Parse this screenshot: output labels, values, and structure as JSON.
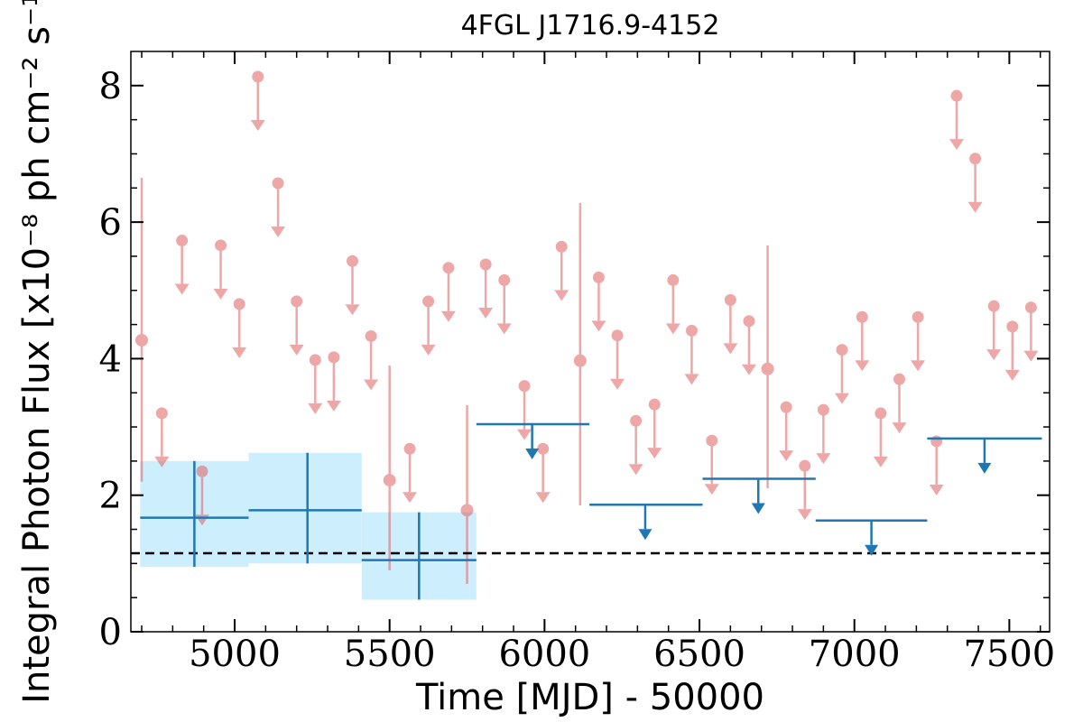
{
  "chart_data": {
    "type": "scatter",
    "title": "4FGL J1716.9-4152",
    "xlabel": "Time [MJD] - 50000",
    "ylabel": "Integral Photon Flux [x10⁻⁸ ph cm⁻² s⁻¹]",
    "xlim": [
      4665,
      7630
    ],
    "ylim": [
      0,
      8.5
    ],
    "xticks": [
      5000,
      5500,
      6000,
      6500,
      7000,
      7500
    ],
    "xtick_labels": [
      "5000",
      "5500",
      "6000",
      "6500",
      "7000",
      "7500"
    ],
    "yticks": [
      0,
      2,
      4,
      6,
      8
    ],
    "ytick_labels": [
      "0",
      "2",
      "4",
      "6",
      "8"
    ],
    "grid": false,
    "legend": "none",
    "reference_line": {
      "y": 1.15,
      "style": "dashed",
      "color": "#000000"
    },
    "series": [
      {
        "style": "short-bin detections",
        "color": "#e06060",
        "points": [
          {
            "x": 4700,
            "y": 4.27,
            "ylow": 2.2,
            "yhigh": 6.65
          },
          {
            "x": 5500,
            "y": 2.22,
            "ylow": 0.9,
            "yhigh": 3.9
          },
          {
            "x": 5750,
            "y": 1.78,
            "ylow": 0.7,
            "yhigh": 3.32
          },
          {
            "x": 6115,
            "y": 3.97,
            "ylow": 1.85,
            "yhigh": 6.28
          },
          {
            "x": 6720,
            "y": 3.85,
            "ylow": 2.1,
            "yhigh": 5.66
          }
        ]
      },
      {
        "style": "short-bin upper limits",
        "color": "#e06060",
        "points": [
          {
            "x": 4765,
            "y": 3.2
          },
          {
            "x": 4830,
            "y": 5.73
          },
          {
            "x": 4895,
            "y": 2.35
          },
          {
            "x": 4955,
            "y": 5.66
          },
          {
            "x": 5015,
            "y": 4.8
          },
          {
            "x": 5075,
            "y": 8.13
          },
          {
            "x": 5140,
            "y": 6.57
          },
          {
            "x": 5200,
            "y": 4.84
          },
          {
            "x": 5260,
            "y": 3.98
          },
          {
            "x": 5320,
            "y": 4.02
          },
          {
            "x": 5380,
            "y": 5.43
          },
          {
            "x": 5440,
            "y": 4.33
          },
          {
            "x": 5565,
            "y": 2.68
          },
          {
            "x": 5625,
            "y": 4.84
          },
          {
            "x": 5690,
            "y": 5.33
          },
          {
            "x": 5810,
            "y": 5.38
          },
          {
            "x": 5870,
            "y": 5.15
          },
          {
            "x": 5935,
            "y": 3.6
          },
          {
            "x": 5995,
            "y": 2.68
          },
          {
            "x": 6055,
            "y": 5.64
          },
          {
            "x": 6175,
            "y": 5.19
          },
          {
            "x": 6235,
            "y": 4.34
          },
          {
            "x": 6295,
            "y": 3.09
          },
          {
            "x": 6355,
            "y": 3.33
          },
          {
            "x": 6415,
            "y": 5.15
          },
          {
            "x": 6475,
            "y": 4.41
          },
          {
            "x": 6540,
            "y": 2.8
          },
          {
            "x": 6600,
            "y": 4.86
          },
          {
            "x": 6660,
            "y": 4.55
          },
          {
            "x": 6780,
            "y": 3.29
          },
          {
            "x": 6840,
            "y": 2.43
          },
          {
            "x": 6900,
            "y": 3.25
          },
          {
            "x": 6960,
            "y": 4.13
          },
          {
            "x": 7025,
            "y": 4.61
          },
          {
            "x": 7085,
            "y": 3.2
          },
          {
            "x": 7145,
            "y": 3.7
          },
          {
            "x": 7205,
            "y": 4.61
          },
          {
            "x": 7265,
            "y": 2.79
          },
          {
            "x": 7330,
            "y": 7.85
          },
          {
            "x": 7390,
            "y": 6.93
          },
          {
            "x": 7450,
            "y": 4.77
          },
          {
            "x": 7510,
            "y": 4.47
          },
          {
            "x": 7570,
            "y": 4.75
          }
        ]
      },
      {
        "style": "long-bin detections",
        "color": "#1f77b4",
        "band_color": "#cdeefc",
        "points": [
          {
            "x": 4870,
            "xlow": 4695,
            "xhigh": 5045,
            "y": 1.67,
            "ylow": 0.95,
            "yhigh": 2.5
          },
          {
            "x": 5235,
            "xlow": 5045,
            "xhigh": 5410,
            "y": 1.78,
            "ylow": 1.0,
            "yhigh": 2.62
          },
          {
            "x": 5595,
            "xlow": 5410,
            "xhigh": 5780,
            "y": 1.05,
            "ylow": 0.47,
            "yhigh": 1.75
          }
        ]
      },
      {
        "style": "long-bin upper limits",
        "color": "#1f77b4",
        "points": [
          {
            "x": 5960,
            "xlow": 5780,
            "xhigh": 6145,
            "y": 3.04
          },
          {
            "x": 6325,
            "xlow": 6145,
            "xhigh": 6510,
            "y": 1.86
          },
          {
            "x": 6690,
            "xlow": 6510,
            "xhigh": 6875,
            "y": 2.24
          },
          {
            "x": 7055,
            "xlow": 6875,
            "xhigh": 7235,
            "y": 1.63
          },
          {
            "x": 7420,
            "xlow": 7235,
            "xhigh": 7605,
            "y": 2.83
          }
        ]
      }
    ]
  }
}
